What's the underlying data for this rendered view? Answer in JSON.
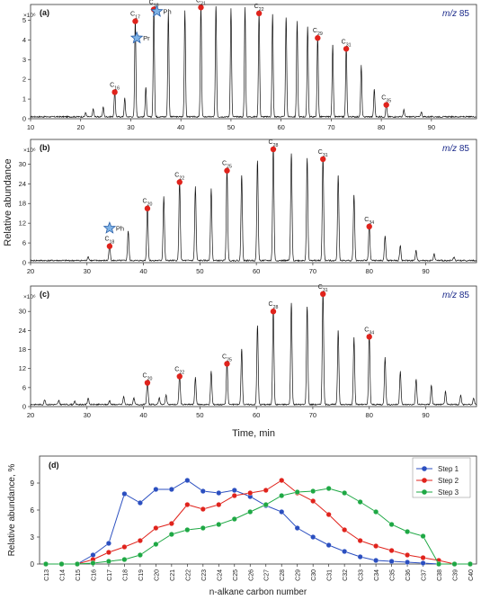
{
  "figure": {
    "shared_ylabel": "Relative abundance",
    "shared_xlabel": "Time, min"
  },
  "chart_data": [
    {
      "type": "line",
      "panel_label": "(a)",
      "annotation": "m/z 85",
      "y_exponent_label": "×10⁶",
      "xlim": [
        10,
        99
      ],
      "ylim": [
        0,
        5.8
      ],
      "xticks": [
        10,
        20,
        30,
        40,
        50,
        60,
        70,
        80,
        90
      ],
      "yticks": [
        0,
        1,
        2,
        3,
        4,
        5
      ],
      "peaks": [
        {
          "x": 21.0,
          "y": 0.2
        },
        {
          "x": 22.5,
          "y": 0.4
        },
        {
          "x": 24.5,
          "y": 0.5
        },
        {
          "x": 26.8,
          "y": 1.35,
          "label": "C16"
        },
        {
          "x": 28.8,
          "y": 0.95
        },
        {
          "x": 30.9,
          "y": 4.95,
          "label": "C17"
        },
        {
          "x": 31.2,
          "y": 4.1,
          "marker": "star",
          "label": "Pr"
        },
        {
          "x": 33.0,
          "y": 1.5
        },
        {
          "x": 34.6,
          "y": 5.55,
          "label": "C18"
        },
        {
          "x": 35.2,
          "y": 5.45,
          "marker": "star",
          "label": "Ph"
        },
        {
          "x": 37.5,
          "y": 5.3
        },
        {
          "x": 40.8,
          "y": 5.4
        },
        {
          "x": 44.0,
          "y": 5.65,
          "label": "C21"
        },
        {
          "x": 47.0,
          "y": 5.6
        },
        {
          "x": 50.0,
          "y": 5.5
        },
        {
          "x": 52.8,
          "y": 5.55
        },
        {
          "x": 55.6,
          "y": 5.35,
          "label": "C22"
        },
        {
          "x": 58.3,
          "y": 5.2
        },
        {
          "x": 61.0,
          "y": 5.05
        },
        {
          "x": 63.2,
          "y": 4.85
        },
        {
          "x": 65.3,
          "y": 4.6
        },
        {
          "x": 67.3,
          "y": 4.1,
          "label": "C29"
        },
        {
          "x": 70.3,
          "y": 3.65
        },
        {
          "x": 73.0,
          "y": 3.55,
          "label": "C31"
        },
        {
          "x": 76.0,
          "y": 2.6
        },
        {
          "x": 78.6,
          "y": 1.4
        },
        {
          "x": 81.0,
          "y": 0.7,
          "label": "C35"
        },
        {
          "x": 84.5,
          "y": 0.35
        },
        {
          "x": 88.0,
          "y": 0.25
        }
      ]
    },
    {
      "type": "line",
      "panel_label": "(b)",
      "annotation": "m/z 85",
      "y_exponent_label": "×10⁶",
      "xlim": [
        20,
        99
      ],
      "ylim": [
        0,
        37.5
      ],
      "xticks": [
        20,
        30,
        40,
        50,
        60,
        70,
        80,
        90
      ],
      "yticks": [
        0,
        6,
        12,
        18,
        24,
        30
      ],
      "peaks": [
        {
          "x": 30.2,
          "y": 1.2
        },
        {
          "x": 34.0,
          "y": 5.0,
          "label": "C18"
        },
        {
          "x": 34.0,
          "y": 10.5,
          "marker": "star",
          "label": "Ph"
        },
        {
          "x": 37.3,
          "y": 9.0
        },
        {
          "x": 40.7,
          "y": 16.5,
          "label": "C20"
        },
        {
          "x": 43.6,
          "y": 19.5
        },
        {
          "x": 46.4,
          "y": 24.5,
          "label": "C22"
        },
        {
          "x": 49.2,
          "y": 22.5
        },
        {
          "x": 52.0,
          "y": 22.0
        },
        {
          "x": 54.8,
          "y": 28.0,
          "label": "C25"
        },
        {
          "x": 57.4,
          "y": 26.0
        },
        {
          "x": 60.2,
          "y": 30.5
        },
        {
          "x": 63.0,
          "y": 34.5,
          "label": "C28"
        },
        {
          "x": 66.2,
          "y": 32.5
        },
        {
          "x": 69.0,
          "y": 31.0
        },
        {
          "x": 71.8,
          "y": 31.5,
          "label": "C31"
        },
        {
          "x": 74.5,
          "y": 26.0
        },
        {
          "x": 77.3,
          "y": 20.0
        },
        {
          "x": 80.0,
          "y": 11.0,
          "label": "C34"
        },
        {
          "x": 82.8,
          "y": 7.5
        },
        {
          "x": 85.5,
          "y": 4.5
        },
        {
          "x": 88.3,
          "y": 3.0
        },
        {
          "x": 91.5,
          "y": 2.0
        },
        {
          "x": 95.0,
          "y": 1.0
        }
      ]
    },
    {
      "type": "line",
      "panel_label": "(c)",
      "annotation": "m/z 85",
      "y_exponent_label": "×10⁶",
      "xlim": [
        20,
        99
      ],
      "ylim": [
        0,
        38
      ],
      "xticks": [
        20,
        30,
        40,
        50,
        60,
        70,
        80,
        90
      ],
      "yticks": [
        0,
        6,
        12,
        18,
        24,
        30
      ],
      "peaks": [
        {
          "x": 22.5,
          "y": 1.5
        },
        {
          "x": 25.0,
          "y": 1.2
        },
        {
          "x": 27.8,
          "y": 1.0
        },
        {
          "x": 30.2,
          "y": 2.0
        },
        {
          "x": 34.0,
          "y": 1.2
        },
        {
          "x": 36.5,
          "y": 2.5
        },
        {
          "x": 38.3,
          "y": 2.0
        },
        {
          "x": 40.7,
          "y": 7.5,
          "label": "C20"
        },
        {
          "x": 42.8,
          "y": 2.2
        },
        {
          "x": 44.0,
          "y": 3.0
        },
        {
          "x": 46.4,
          "y": 9.5,
          "label": "C22"
        },
        {
          "x": 49.2,
          "y": 8.5
        },
        {
          "x": 52.0,
          "y": 10.5
        },
        {
          "x": 54.8,
          "y": 13.5,
          "label": "C25"
        },
        {
          "x": 57.4,
          "y": 17.5
        },
        {
          "x": 60.2,
          "y": 25.0
        },
        {
          "x": 63.0,
          "y": 30.0,
          "label": "C28"
        },
        {
          "x": 66.2,
          "y": 32.0
        },
        {
          "x": 69.0,
          "y": 31.0
        },
        {
          "x": 71.8,
          "y": 35.5,
          "label": "C31"
        },
        {
          "x": 74.5,
          "y": 23.5
        },
        {
          "x": 77.3,
          "y": 21.0
        },
        {
          "x": 80.0,
          "y": 22.0,
          "label": "C34"
        },
        {
          "x": 82.8,
          "y": 15.0
        },
        {
          "x": 85.5,
          "y": 10.5
        },
        {
          "x": 88.3,
          "y": 8.0
        },
        {
          "x": 91.0,
          "y": 6.0
        },
        {
          "x": 93.5,
          "y": 4.0
        },
        {
          "x": 96.2,
          "y": 3.0
        },
        {
          "x": 98.5,
          "y": 2.0
        }
      ]
    },
    {
      "type": "line",
      "panel_label": "(d)",
      "ylabel": "Relative abundance, %",
      "xlabel": "n-alkane carbon number",
      "ylim": [
        0,
        12
      ],
      "yticks": [
        0,
        3,
        6,
        9
      ],
      "categories": [
        "C13",
        "C14",
        "C15",
        "C16",
        "C17",
        "C18",
        "C19",
        "C20",
        "C21",
        "C22",
        "C23",
        "C24",
        "C25",
        "C26",
        "C27",
        "C28",
        "C29",
        "C30",
        "C31",
        "C32",
        "C33",
        "C34",
        "C35",
        "C36",
        "C37",
        "C38",
        "C39",
        "C40"
      ],
      "legend_position": "top-right",
      "series": [
        {
          "name": "Step 1",
          "color": "#2b4fc0",
          "values": [
            0,
            0,
            0,
            1.0,
            2.3,
            7.8,
            6.8,
            8.3,
            8.3,
            9.3,
            8.1,
            7.9,
            8.2,
            7.5,
            6.5,
            5.8,
            4.0,
            3.0,
            2.1,
            1.4,
            0.8,
            0.4,
            0.3,
            0.2,
            0.1,
            0,
            0,
            0
          ]
        },
        {
          "name": "Step 2",
          "color": "#e0231c",
          "values": [
            0,
            0,
            0,
            0.5,
            1.3,
            1.9,
            2.6,
            4.0,
            4.5,
            6.6,
            6.1,
            6.6,
            7.6,
            7.9,
            8.2,
            9.3,
            7.9,
            7.0,
            5.5,
            3.8,
            2.6,
            2.0,
            1.5,
            1.0,
            0.7,
            0.4,
            0,
            0
          ]
        },
        {
          "name": "Step 3",
          "color": "#1ea844",
          "values": [
            0,
            0,
            0,
            0.1,
            0.3,
            0.5,
            1.0,
            2.2,
            3.3,
            3.8,
            4.0,
            4.4,
            5.0,
            5.8,
            6.6,
            7.6,
            8.0,
            8.1,
            8.4,
            7.9,
            6.9,
            5.8,
            4.4,
            3.6,
            3.1,
            0,
            0,
            0
          ]
        }
      ]
    }
  ]
}
